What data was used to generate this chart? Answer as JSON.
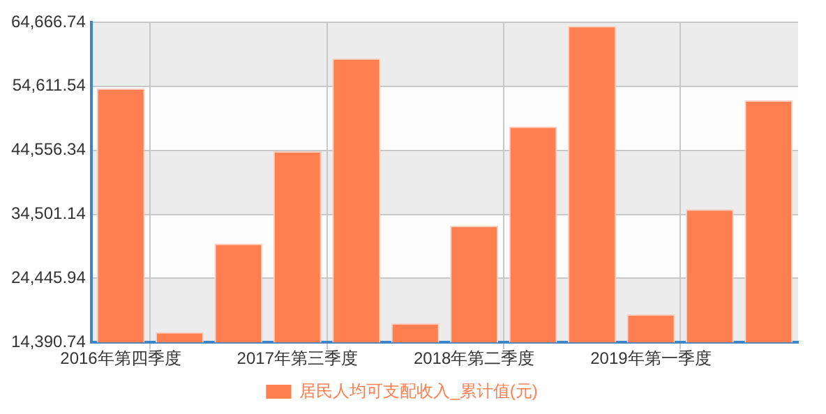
{
  "chart_data": {
    "type": "bar",
    "categories": [
      "2016年第四季度",
      null,
      null,
      "2017年第三季度",
      null,
      null,
      "2018年第二季度",
      null,
      null,
      "2019年第一季度",
      null,
      null
    ],
    "series": [
      {
        "name": "居民人均可支配收入_累计值(元)",
        "color": "#ff7f50",
        "values": [
          54300,
          16000,
          29900,
          44400,
          59000,
          17400,
          32700,
          48300,
          64100,
          18800,
          35300,
          52400
        ]
      }
    ],
    "ylim": [
      14390.74,
      64666.74
    ],
    "yticks": [
      {
        "value": 14390.74,
        "label": "14,390.74"
      },
      {
        "value": 24445.94,
        "label": "24,445.94"
      },
      {
        "value": 34501.14,
        "label": "34,501.14"
      },
      {
        "value": 44556.34,
        "label": "44,556.34"
      },
      {
        "value": 54611.54,
        "label": "54,611.54"
      },
      {
        "value": 64666.74,
        "label": "64,666.74"
      }
    ],
    "grid": true,
    "legend": "bottom"
  }
}
